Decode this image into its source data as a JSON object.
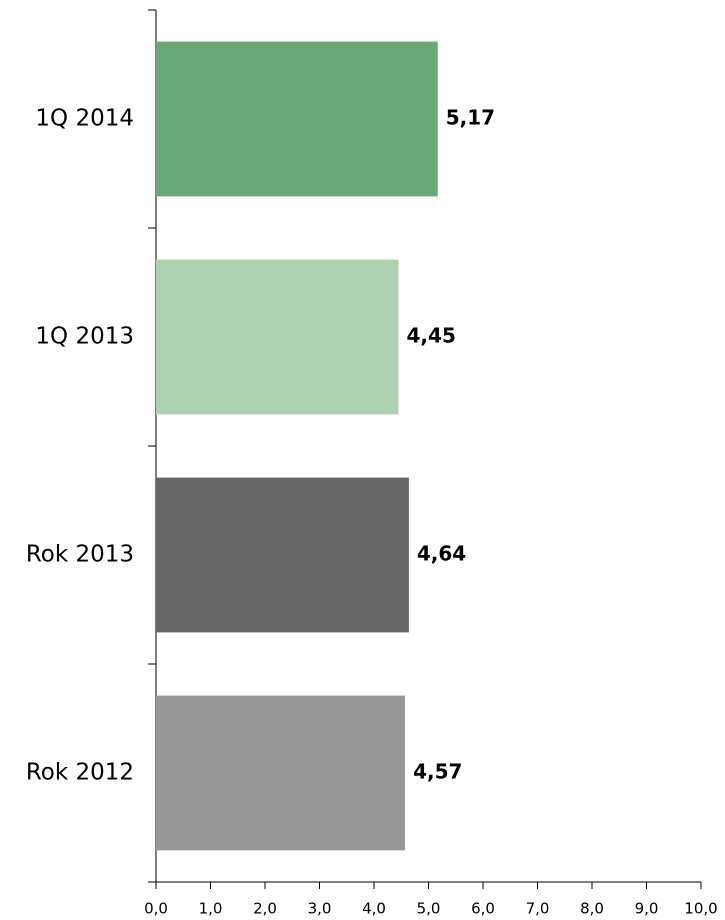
{
  "chart_data": {
    "type": "hbar",
    "categories": [
      "1Q 2014",
      "1Q 2013",
      "Rok 2013",
      "Rok 2012"
    ],
    "values": [
      5.17,
      4.45,
      4.64,
      4.57
    ],
    "value_labels": [
      "5,17",
      "4,45",
      "4,64",
      "4,57"
    ],
    "colors": [
      "#6aa877",
      "#aed2b1",
      "#666666",
      "#999999"
    ],
    "xlim": [
      0,
      10
    ],
    "xticks": [
      {
        "value": 0,
        "label": "0,0"
      },
      {
        "value": 1,
        "label": "1,0"
      },
      {
        "value": 2,
        "label": "2,0"
      },
      {
        "value": 3,
        "label": "3,0"
      },
      {
        "value": 4,
        "label": "4,0"
      },
      {
        "value": 5,
        "label": "5,0"
      },
      {
        "value": 6,
        "label": "6,0"
      },
      {
        "value": 7,
        "label": "7,0"
      },
      {
        "value": 8,
        "label": "8,0"
      },
      {
        "value": 9,
        "label": "9,0"
      },
      {
        "value": 10,
        "label": "10,0"
      }
    ],
    "grid": false
  }
}
